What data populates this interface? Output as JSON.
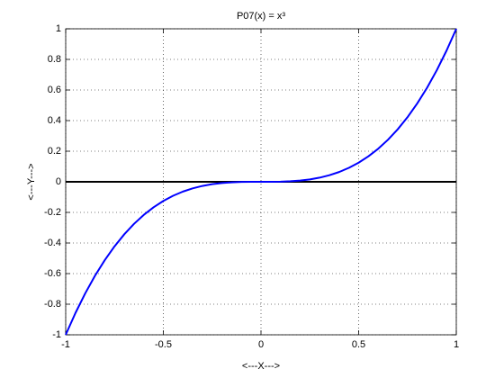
{
  "chart_data": {
    "type": "line",
    "title": "P07(x) = x³",
    "xlabel": "<---X--->",
    "ylabel": "<---Y--->",
    "x": [
      -1,
      -0.95,
      -0.9,
      -0.85,
      -0.8,
      -0.75,
      -0.7,
      -0.65,
      -0.6,
      -0.55,
      -0.5,
      -0.45,
      -0.4,
      -0.35,
      -0.3,
      -0.25,
      -0.2,
      -0.15,
      -0.1,
      -0.05,
      0,
      0.05,
      0.1,
      0.15,
      0.2,
      0.25,
      0.3,
      0.35,
      0.4,
      0.45,
      0.5,
      0.55,
      0.6,
      0.65,
      0.7,
      0.75,
      0.8,
      0.85,
      0.9,
      0.95,
      1
    ],
    "series": [
      {
        "color": "#0000ff",
        "values": [
          -1,
          -0.857375,
          -0.729,
          -0.614125,
          -0.512,
          -0.421875,
          -0.343,
          -0.274625,
          -0.216,
          -0.166375,
          -0.125,
          -0.091125,
          -0.064,
          -0.042875,
          -0.027,
          -0.015625,
          -0.008,
          -0.003375,
          -0.001,
          -0.000125,
          0,
          0.000125,
          0.001,
          0.003375,
          0.008,
          0.015625,
          0.027,
          0.042875,
          0.064,
          0.091125,
          0.125,
          0.166375,
          0.216,
          0.274625,
          0.343,
          0.421875,
          0.512,
          0.614125,
          0.729,
          0.857375,
          1
        ]
      }
    ],
    "reference_line": {
      "y": 0,
      "color": "#000000"
    },
    "xlim": [
      -1,
      1
    ],
    "xticks": [
      -1,
      -0.5,
      0,
      0.5,
      1
    ],
    "ylim": [
      -1,
      1
    ],
    "yticks": [
      -1,
      -0.8,
      -0.6,
      -0.4,
      -0.2,
      0,
      0.2,
      0.4,
      0.6,
      0.8,
      1
    ],
    "grid": true
  }
}
